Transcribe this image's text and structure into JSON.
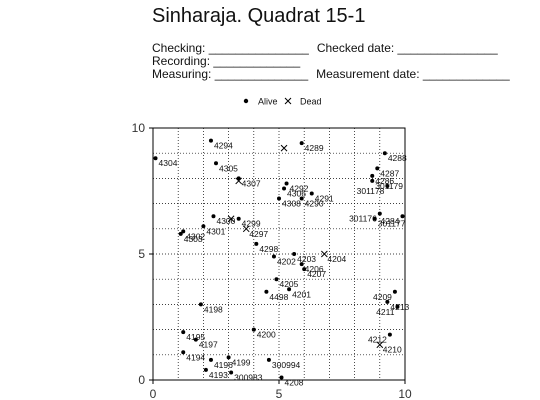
{
  "header": {
    "title": "Sinharaja. Quadrat 15-1",
    "checking": "Checking: _______________",
    "checked_date": "Checked date: _______________",
    "recording": "Recording: _____________",
    "measuring": "Measuring: ______________",
    "measurement_date": "Measurement date: _____________"
  },
  "chart_data": {
    "type": "scatter",
    "xlim": [
      0,
      10
    ],
    "ylim": [
      0,
      10
    ],
    "x_ticks": [
      "0",
      "5",
      "10"
    ],
    "y_ticks": [
      "0",
      "5",
      "10"
    ],
    "grid": true,
    "legend_position": "top-center",
    "legend": [
      {
        "marker": "dot",
        "label": "Alive"
      },
      {
        "marker": "cross",
        "label": "Dead"
      }
    ],
    "series": [
      {
        "name": "Alive",
        "marker": "dot",
        "points": [
          {
            "x": 0.1,
            "y": 8.8,
            "label": "4304"
          },
          {
            "x": 2.3,
            "y": 9.5,
            "label": "4294"
          },
          {
            "x": 2.5,
            "y": 8.6,
            "label": "4305"
          },
          {
            "x": 3.4,
            "y": 8.0,
            "label": "4307"
          },
          {
            "x": 5.9,
            "y": 9.4,
            "label": "4289"
          },
          {
            "x": 5.3,
            "y": 7.8,
            "label": "4292"
          },
          {
            "x": 5.2,
            "y": 7.6,
            "label": "4306"
          },
          {
            "x": 6.3,
            "y": 7.4,
            "label": "4291"
          },
          {
            "x": 5.0,
            "y": 7.2,
            "label": "4308"
          },
          {
            "x": 5.9,
            "y": 7.2,
            "label": "4290"
          },
          {
            "x": 9.2,
            "y": 9.0,
            "label": "4288"
          },
          {
            "x": 8.9,
            "y": 8.4,
            "label": "4287"
          },
          {
            "x": 8.7,
            "y": 8.1,
            "label": "4286"
          },
          {
            "x": 8.7,
            "y": 7.9,
            "label": "301179"
          },
          {
            "x": 9.3,
            "y": 7.7,
            "label": "301178"
          },
          {
            "x": 9.0,
            "y": 6.6,
            "label": "301176"
          },
          {
            "x": 8.8,
            "y": 6.4,
            "label": "301177"
          },
          {
            "x": 9.9,
            "y": 6.5,
            "label": "4284"
          },
          {
            "x": 2.0,
            "y": 6.1,
            "label": "4301"
          },
          {
            "x": 2.4,
            "y": 6.5,
            "label": "4300"
          },
          {
            "x": 3.4,
            "y": 6.4,
            "label": "4299"
          },
          {
            "x": 1.2,
            "y": 5.9,
            "label": "4302"
          },
          {
            "x": 1.1,
            "y": 5.8,
            "label": "4303"
          },
          {
            "x": 4.1,
            "y": 5.4,
            "label": "4298"
          },
          {
            "x": 4.8,
            "y": 4.9,
            "label": "4202"
          },
          {
            "x": 5.6,
            "y": 5.0,
            "label": "4203"
          },
          {
            "x": 5.9,
            "y": 4.6,
            "label": "4206"
          },
          {
            "x": 6.0,
            "y": 4.4,
            "label": "4207"
          },
          {
            "x": 4.9,
            "y": 4.0,
            "label": "4205"
          },
          {
            "x": 4.5,
            "y": 3.5,
            "label": "4498"
          },
          {
            "x": 5.4,
            "y": 3.6,
            "label": "4201"
          },
          {
            "x": 9.6,
            "y": 3.5,
            "label": "4209"
          },
          {
            "x": 9.3,
            "y": 3.1,
            "label": "4213"
          },
          {
            "x": 9.7,
            "y": 2.9,
            "label": "4211"
          },
          {
            "x": 9.4,
            "y": 1.8,
            "label": "4212"
          },
          {
            "x": 1.9,
            "y": 3.0,
            "label": "4198"
          },
          {
            "x": 1.2,
            "y": 1.9,
            "label": "4195"
          },
          {
            "x": 1.7,
            "y": 1.6,
            "label": "4197"
          },
          {
            "x": 1.2,
            "y": 1.1,
            "label": "4194"
          },
          {
            "x": 2.3,
            "y": 0.8,
            "label": "4196"
          },
          {
            "x": 3.0,
            "y": 0.9,
            "label": "4199"
          },
          {
            "x": 4.0,
            "y": 2.0,
            "label": "4200"
          },
          {
            "x": 4.6,
            "y": 0.8,
            "label": "300994"
          },
          {
            "x": 2.1,
            "y": 0.4,
            "label": "4193"
          },
          {
            "x": 3.1,
            "y": 0.3,
            "label": "300983"
          },
          {
            "x": 5.1,
            "y": 0.1,
            "label": "4208"
          }
        ]
      },
      {
        "name": "Dead",
        "marker": "cross",
        "points": [
          {
            "x": 3.4,
            "y": 7.9,
            "label": ""
          },
          {
            "x": 5.2,
            "y": 9.2,
            "label": ""
          },
          {
            "x": 3.1,
            "y": 6.4,
            "label": ""
          },
          {
            "x": 3.7,
            "y": 6.0,
            "label": "4297"
          },
          {
            "x": 6.8,
            "y": 5.0,
            "label": "4204"
          },
          {
            "x": 9.0,
            "y": 1.4,
            "label": "4210"
          }
        ]
      }
    ]
  }
}
